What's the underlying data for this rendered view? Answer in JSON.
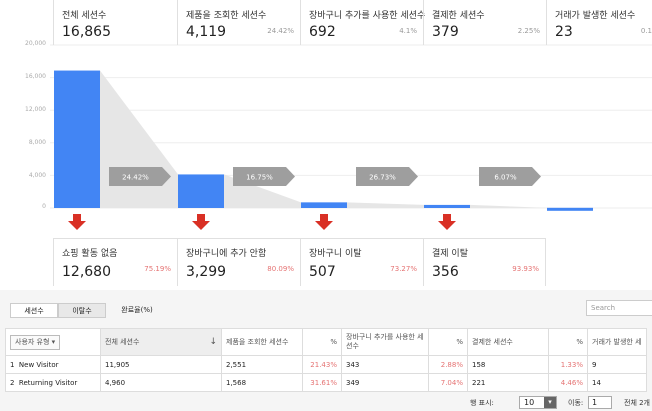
{
  "y_ticks": [
    "20,000",
    "16,000",
    "12,000",
    "8,000",
    "4,000",
    "0"
  ],
  "stages": [
    {
      "label": "전체 세션수",
      "value": "16,865",
      "pct": "",
      "bar_value": 16865
    },
    {
      "label": "제품을 조회한 세션수",
      "value": "4,119",
      "pct": "24.42%",
      "bar_value": 4119
    },
    {
      "label": "장바구니 추가를 사용한 세션수",
      "value": "692",
      "pct": "4.1%",
      "bar_value": 692
    },
    {
      "label": "결제한 세션수",
      "value": "379",
      "pct": "2.25%",
      "bar_value": 379
    },
    {
      "label": "거래가 발생한 세션수",
      "value": "23",
      "pct": "0.1",
      "bar_value": 23
    }
  ],
  "conversions": [
    "24.42%",
    "16.75%",
    "26.73%",
    "6.07%"
  ],
  "dropoffs": [
    {
      "label": "쇼핑 활동 없음",
      "value": "12,680",
      "pct": "75.19%"
    },
    {
      "label": "장바구니에 추가 안함",
      "value": "3,299",
      "pct": "80.09%"
    },
    {
      "label": "장바구니 이탈",
      "value": "507",
      "pct": "73.27%"
    },
    {
      "label": "결제 이탈",
      "value": "356",
      "pct": "93.93%"
    }
  ],
  "colors": {
    "bar": "#4285f4",
    "arrow": "#9e9e9e",
    "down_arrow": "#d93025",
    "pct_red": "#e57373"
  },
  "chart_data": {
    "type": "bar",
    "categories": [
      "전체 세션수",
      "제품을 조회한 세션수",
      "장바구니 추가를 사용한 세션수",
      "결제한 세션수",
      "거래가 발생한 세션수"
    ],
    "values": [
      16865,
      4119,
      692,
      379,
      23
    ],
    "ylim": [
      0,
      20000
    ]
  },
  "tabs": {
    "sessions": "세션수",
    "exits": "이탈수",
    "completion": "완료율(%)"
  },
  "search": {
    "placeholder": "Search"
  },
  "table": {
    "dimension_label": "사용자 유형",
    "headers": [
      "전체 세션수",
      "제품을 조회한 세션수",
      "%",
      "장바구니 추가를 사용한 세션수",
      "%",
      "결제한 세션수",
      "%",
      "거래가 발생한 세"
    ],
    "rows": [
      {
        "idx": "1",
        "name": "New Visitor",
        "cells": [
          "11,905",
          "2,551",
          "21.43%",
          "343",
          "2.88%",
          "158",
          "1.33%",
          "9"
        ]
      },
      {
        "idx": "2",
        "name": "Returning Visitor",
        "cells": [
          "4,960",
          "1,568",
          "31.61%",
          "349",
          "7.04%",
          "221",
          "4.46%",
          "14"
        ]
      }
    ]
  },
  "pager": {
    "rows_label": "행 표시:",
    "rows_value": "10",
    "goto_label": "이동:",
    "goto_value": "1",
    "total": "전체 2개"
  }
}
